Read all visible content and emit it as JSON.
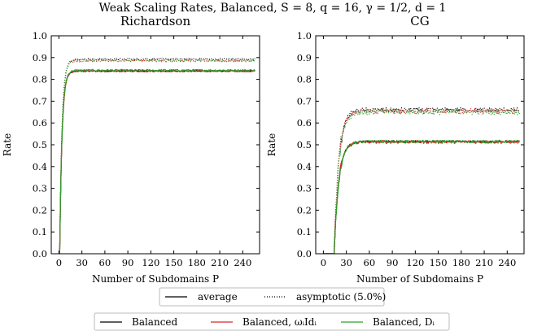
{
  "suptitle": "Weak Scaling Rates, Balanced, S = 8, q = 16, γ = 1/2, d = 1",
  "legend_style": {
    "average": "average",
    "asymptotic": "asymptotic (5.0%)"
  },
  "legend_methods": [
    {
      "name": "Balanced",
      "color": "#000000"
    },
    {
      "name": "Balanced, ωᵢIdᵢ",
      "color": "#d62728"
    },
    {
      "name": "Balanced, Dᵢ",
      "color": "#2ca02c"
    }
  ],
  "chart_data": [
    {
      "type": "line",
      "title": "Richardson",
      "xlabel": "Number of Subdomains P",
      "ylabel": "Rate",
      "xlim": [
        -10,
        262
      ],
      "ylim": [
        0.0,
        1.0
      ],
      "xticks": [
        0,
        30,
        60,
        90,
        120,
        150,
        180,
        210,
        240
      ],
      "yticks": [
        0.0,
        0.1,
        0.2,
        0.3,
        0.4,
        0.5,
        0.6,
        0.7,
        0.8,
        0.9,
        1.0
      ],
      "grid": false,
      "curve": {
        "x_start": 1,
        "x_end": 256,
        "x_onset": 2,
        "tau": 3.0
      },
      "series": [
        {
          "name": "Balanced",
          "style": "average",
          "color": "#000000",
          "plateau": 0.838,
          "noise": 0.003
        },
        {
          "name": "Balanced, ωᵢIdᵢ",
          "style": "average",
          "color": "#d62728",
          "plateau": 0.838,
          "noise": 0.004
        },
        {
          "name": "Balanced, Dᵢ",
          "style": "average",
          "color": "#2ca02c",
          "plateau": 0.842,
          "noise": 0.004
        },
        {
          "name": "Balanced",
          "style": "asymptotic",
          "color": "#000000",
          "plateau": 0.893,
          "noise": 0.004
        },
        {
          "name": "Balanced, ωᵢIdᵢ",
          "style": "asymptotic",
          "color": "#d62728",
          "plateau": 0.886,
          "noise": 0.005
        },
        {
          "name": "Balanced, Dᵢ",
          "style": "asymptotic",
          "color": "#2ca02c",
          "plateau": 0.886,
          "noise": 0.005
        }
      ]
    },
    {
      "type": "line",
      "title": "CG",
      "xlabel": "Number of Subdomains P",
      "ylabel": "Rate",
      "xlim": [
        -10,
        262
      ],
      "ylim": [
        0.0,
        1.0
      ],
      "xticks": [
        0,
        30,
        60,
        90,
        120,
        150,
        180,
        210,
        240
      ],
      "yticks": [
        0.0,
        0.1,
        0.2,
        0.3,
        0.4,
        0.5,
        0.6,
        0.7,
        0.8,
        0.9,
        1.0
      ],
      "grid": false,
      "curve": {
        "x_start": 1,
        "x_end": 256,
        "x_onset": 15,
        "tau": 6.0
      },
      "series": [
        {
          "name": "Balanced",
          "style": "average",
          "color": "#000000",
          "plateau": 0.515,
          "noise": 0.004
        },
        {
          "name": "Balanced, ωᵢIdᵢ",
          "style": "average",
          "color": "#d62728",
          "plateau": 0.513,
          "noise": 0.007
        },
        {
          "name": "Balanced, Dᵢ",
          "style": "average",
          "color": "#2ca02c",
          "plateau": 0.515,
          "noise": 0.006
        },
        {
          "name": "Balanced",
          "style": "asymptotic",
          "color": "#000000",
          "plateau": 0.66,
          "noise": 0.01
        },
        {
          "name": "Balanced, ωᵢIdᵢ",
          "style": "asymptotic",
          "color": "#d62728",
          "plateau": 0.655,
          "noise": 0.012
        },
        {
          "name": "Balanced, Dᵢ",
          "style": "asymptotic",
          "color": "#2ca02c",
          "plateau": 0.65,
          "noise": 0.012
        }
      ]
    }
  ]
}
